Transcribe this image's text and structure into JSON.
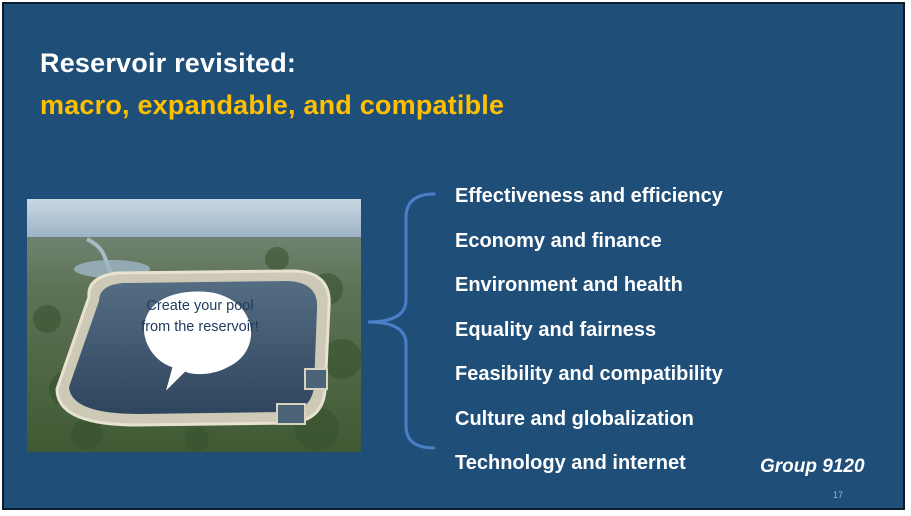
{
  "slide": {
    "title_line1": "Reservoir revisited:",
    "title_line2": "macro, expandable, and compatible",
    "bubble_text": "Create your pool from the reservoir!",
    "photo_icon": "aerial-reservoir-photo",
    "items": [
      "Effectiveness and efficiency",
      "Economy and finance",
      "Environment and health",
      "Equality and fairness",
      "Feasibility and compatibility",
      "Culture and globalization",
      "Technology and internet"
    ],
    "group_label": "Group 9120",
    "page_number": "17"
  },
  "colors": {
    "background": "#1f4e79",
    "title_primary": "#ffffff",
    "title_accent": "#ffc000",
    "brace": "#4a7fc8"
  }
}
